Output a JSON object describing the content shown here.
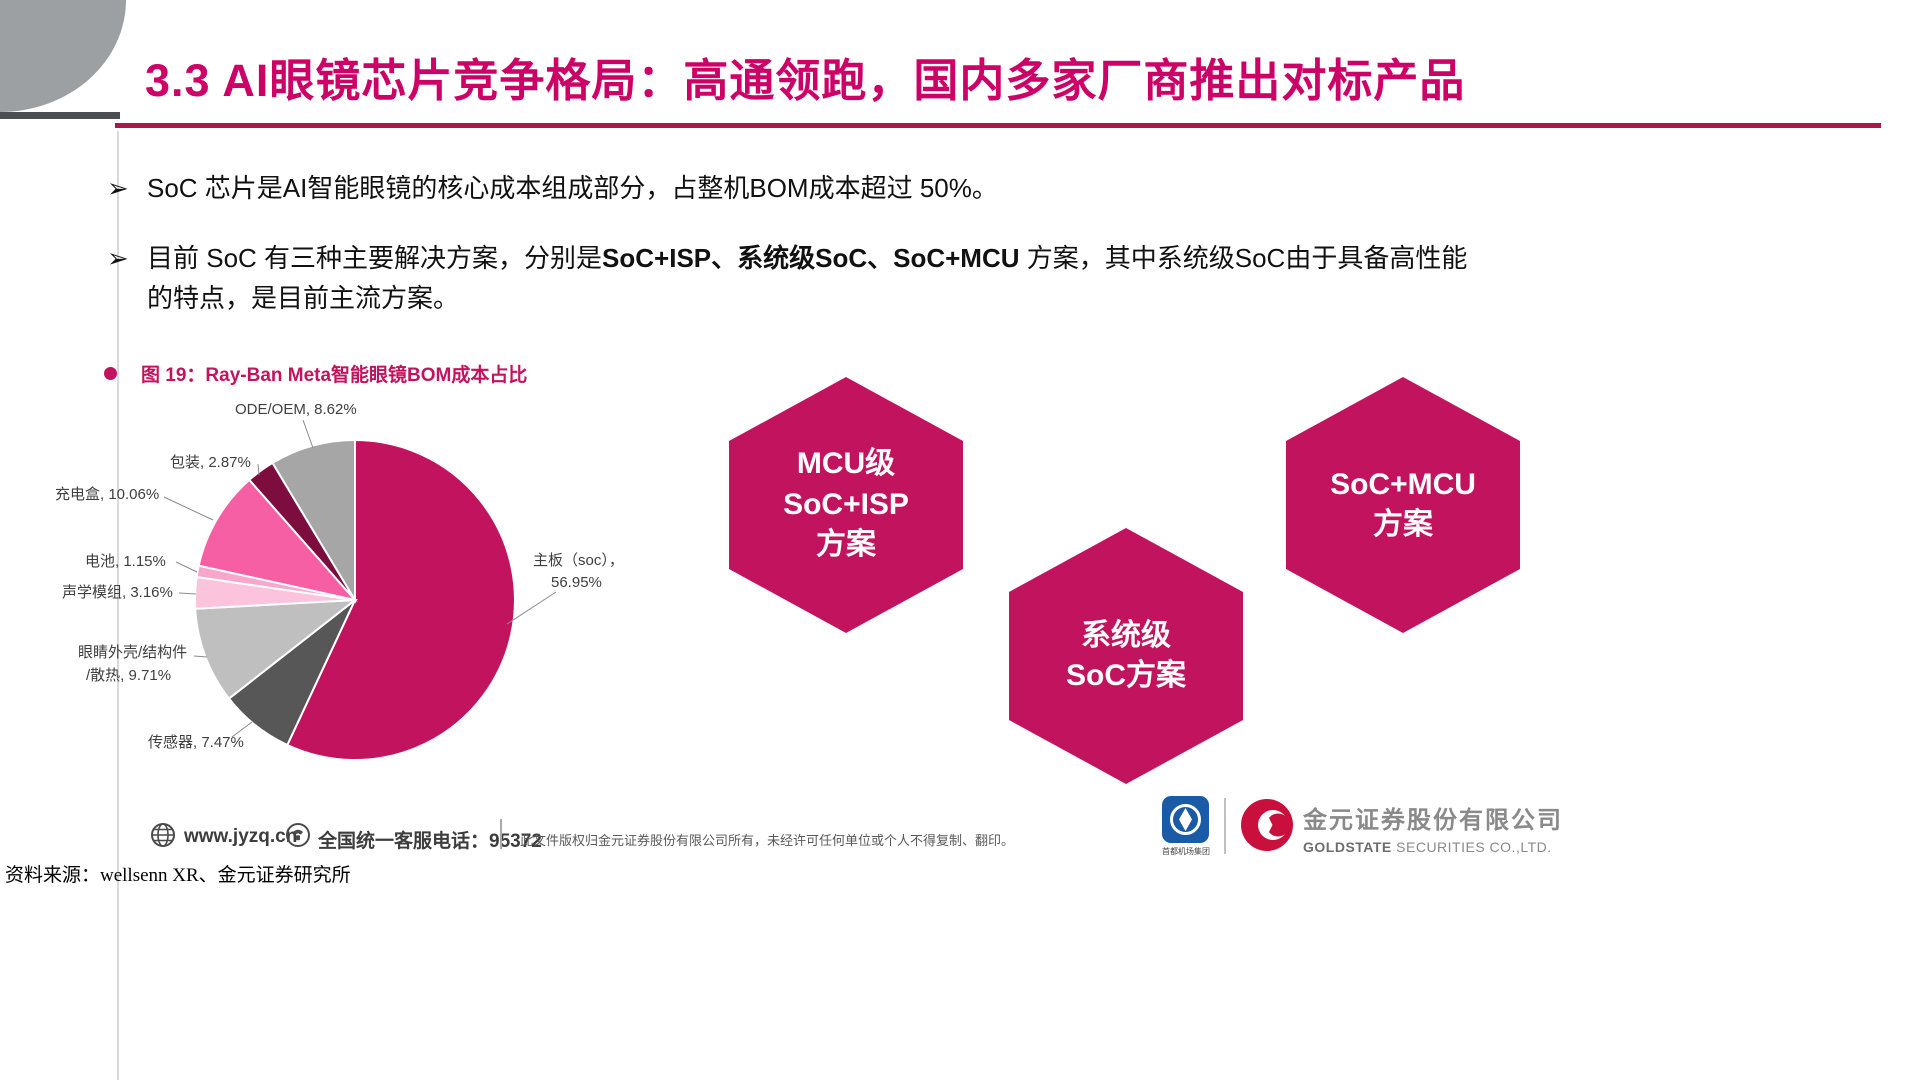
{
  "page": {
    "title": "3.3 AI眼镜芯片竞争格局：高通领跑，国内多家厂商推出对标产品",
    "source_note": "资料来源：wellsenn XR、金元证券研究所"
  },
  "colors": {
    "title_color": "#CC0066",
    "rule_color": "#A8194B",
    "accent": "#C2145E"
  },
  "bullets": [
    {
      "marker": "➢",
      "segments": [
        {
          "text": "SoC 芯片是AI智能眼镜的核心成本组成部分，占整机BOM成本超过 50%。",
          "bold": false
        }
      ]
    },
    {
      "marker": "➢",
      "segments": [
        {
          "text": "目前 SoC 有三种主要解决方案，分别是",
          "bold": false
        },
        {
          "text": "SoC+ISP、系统级SoC、SoC+MCU",
          "bold": true
        },
        {
          "text": " 方案，其中系统级SoC由于具备高性能的特点，是目前主流方案。",
          "bold": false
        }
      ]
    }
  ],
  "figure": {
    "caption": "图 19：Ray-Ban Meta智能眼镜BOM成本占比"
  },
  "chart_data": {
    "type": "pie",
    "title": "图 19：Ray-Ban Meta智能眼镜BOM成本占比",
    "unit": "% of BOM cost",
    "start_angle_deg": 0,
    "clockwise": true,
    "slices": [
      {
        "label": "主板（soc）",
        "value": 56.95,
        "color": "#C2145E",
        "display": [
          "主板（soc），",
          "56.95%"
        ]
      },
      {
        "label": "传感器",
        "value": 7.47,
        "color": "#575757",
        "display": [
          "传感器, 7.47%"
        ]
      },
      {
        "label": "眼睛外壳/结构件/散热",
        "value": 9.71,
        "color": "#BFBFBF",
        "display": [
          "眼睛外壳/结构件",
          "/散热, 9.71%"
        ]
      },
      {
        "label": "声学模组",
        "value": 3.16,
        "color": "#FBC3DC",
        "display": [
          "声学模组, 3.16%"
        ]
      },
      {
        "label": "电池",
        "value": 1.15,
        "color": "#F9A6CD",
        "display": [
          "电池, 1.15%"
        ]
      },
      {
        "label": "充电盒",
        "value": 10.06,
        "color": "#F75FA5",
        "display": [
          "充电盒, 10.06%"
        ]
      },
      {
        "label": "包装",
        "value": 2.87,
        "color": "#7D0D3F",
        "display": [
          "包装, 2.87%"
        ]
      },
      {
        "label": "ODE/OEM",
        "value": 8.62,
        "color": "#A6A6A6",
        "display": [
          "ODE/OEM, 8.62%"
        ]
      }
    ],
    "layout": {
      "center": [
        355,
        220
      ],
      "radius": 160,
      "labels": [
        {
          "lines": [
            [
              533,
              185
            ],
            [
              551,
              207
            ]
          ],
          "leader": [
            [
              556,
              212
            ],
            [
              507,
              244
            ]
          ]
        },
        {
          "lines": [
            [
              148,
              367
            ]
          ],
          "leader": [
            [
              232,
              357
            ],
            [
              252,
              342
            ]
          ]
        },
        {
          "lines": [
            [
              78,
              277
            ],
            [
              86,
              300
            ]
          ],
          "leader": [
            [
              194,
              276
            ],
            [
              207,
              277
            ]
          ]
        },
        {
          "lines": [
            [
              62,
              217
            ]
          ],
          "leader": [
            [
              179,
              213
            ],
            [
              196,
              214
            ]
          ]
        },
        {
          "lines": [
            [
              85,
              186
            ]
          ],
          "leader": [
            [
              176,
              182
            ],
            [
              197,
              192
            ]
          ]
        },
        {
          "lines": [
            [
              55,
              119
            ]
          ],
          "leader": [
            [
              164,
              117
            ],
            [
              213,
              140
            ]
          ]
        },
        {
          "lines": [
            [
              170,
              87
            ]
          ],
          "leader": [
            [
              258,
              84
            ],
            [
              259,
              95
            ]
          ]
        },
        {
          "lines": [
            [
              235,
              34
            ]
          ],
          "leader": [
            [
              303,
              40
            ],
            [
              313,
              68
            ]
          ]
        }
      ]
    }
  },
  "hexagons": [
    {
      "lines": [
        "MCU级",
        "SoC+ISP",
        "方案"
      ]
    },
    {
      "lines": [
        "系统级",
        "SoC方案"
      ]
    },
    {
      "lines": [
        "SoC+MCU",
        "方案"
      ]
    }
  ],
  "footer": {
    "website": "www.jyzq.cn",
    "hotline": "全国统一客服电话：95372",
    "copyright": "此文件版权归金元证券股份有限公司所有，未经许可任何单位或个人不得复制、翻印。",
    "partner_caption": "首都机场集团",
    "company_cn": "金元证券股份有限公司",
    "company_en_bold": "GOLDSTATE",
    "company_en_rest": " SECURITIES CO.,LTD.",
    "icons": {
      "website": "globe-icon",
      "hotline": "phone-icon"
    }
  }
}
